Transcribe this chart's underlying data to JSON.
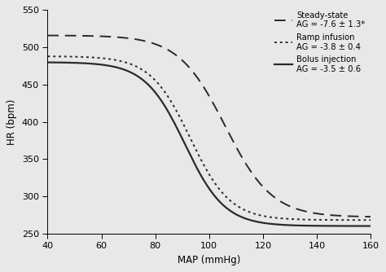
{
  "title": "",
  "xlabel": "MAP (mmHg)",
  "ylabel": "HR (bpm)",
  "xlim": [
    40,
    160
  ],
  "ylim": [
    250,
    550
  ],
  "xticks": [
    40,
    60,
    80,
    100,
    120,
    140,
    160
  ],
  "yticks": [
    250,
    300,
    350,
    400,
    450,
    500,
    550
  ],
  "background_color": "#e8e8e8",
  "plot_bg_color": "#e8e8e8",
  "line_color": "#2a2a2a",
  "legend_entries": [
    {
      "label": "Steady-state",
      "sublabel": "AG = -7.6 ± 1.3*",
      "style": "dashed"
    },
    {
      "label": "Ramp infusion",
      "sublabel": "AG = -3.8 ± 0.4",
      "style": "dotted"
    },
    {
      "label": "Bolus injection",
      "sublabel": "AG = -3.5 ± 0.6",
      "style": "solid"
    }
  ],
  "curves": {
    "steady_state": {
      "HR_max": 516,
      "HR_min": 272,
      "MAP50": 106,
      "slope": 0.115,
      "style": "dashed",
      "lw": 1.4
    },
    "ramp_infusion": {
      "HR_max": 488,
      "HR_min": 268,
      "MAP50": 93,
      "slope": 0.135,
      "style": "dotted",
      "lw": 1.4
    },
    "bolus_injection": {
      "HR_max": 480,
      "HR_min": 260,
      "MAP50": 91,
      "slope": 0.135,
      "style": "solid",
      "lw": 1.6
    }
  }
}
